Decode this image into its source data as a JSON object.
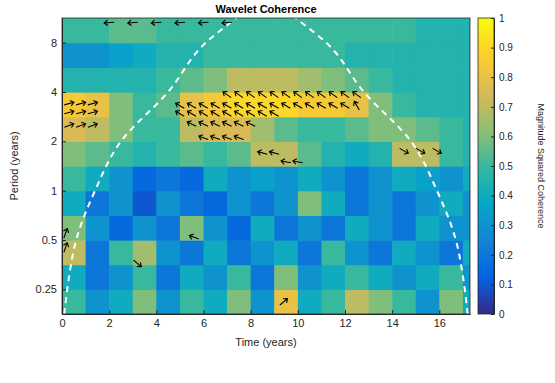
{
  "chart_data": {
    "type": "heatmap",
    "title": "Wavelet Coherence",
    "x_label": "Time (years)",
    "y_label": "Period (years)",
    "log": "y",
    "xlim": [
      0,
      17.3
    ],
    "xticks": [
      0,
      2,
      4,
      6,
      8,
      10,
      12,
      14,
      16
    ],
    "ylim": [
      0.177,
      11.31
    ],
    "yticks": [
      0.25,
      0.5,
      1,
      2,
      4,
      8
    ],
    "x_edges": [
      0,
      1,
      2,
      3,
      4,
      5,
      6,
      7,
      8,
      9,
      10,
      11,
      12,
      13,
      14,
      15,
      16,
      17,
      17.3
    ],
    "y_edges": [
      0.177,
      0.25,
      0.354,
      0.5,
      0.707,
      1,
      1.414,
      2,
      2.828,
      4,
      5.657,
      8,
      11.31
    ],
    "values": [
      [
        0.5,
        0.3,
        0.4,
        0.6,
        0.3,
        0.5,
        0.4,
        0.6,
        0.3,
        0.8,
        0.4,
        0.5,
        0.7,
        0.6,
        0.5,
        0.3,
        0.6,
        0.4
      ],
      [
        0.4,
        0.2,
        0.3,
        0.5,
        0.2,
        0.4,
        0.3,
        0.5,
        0.2,
        0.6,
        0.3,
        0.4,
        0.5,
        0.4,
        0.3,
        0.4,
        0.5,
        0.3
      ],
      [
        0.7,
        0.2,
        0.5,
        0.65,
        0.3,
        0.2,
        0.4,
        0.2,
        0.3,
        0.4,
        0.2,
        0.5,
        0.3,
        0.2,
        0.4,
        0.3,
        0.2,
        0.4
      ],
      [
        0.6,
        0.3,
        0.15,
        0.3,
        0.2,
        0.6,
        0.3,
        0.15,
        0.4,
        0.2,
        0.3,
        0.2,
        0.4,
        0.3,
        0.2,
        0.4,
        0.3,
        0.3
      ],
      [
        0.4,
        0.2,
        0.3,
        0.1,
        0.3,
        0.2,
        0.15,
        0.3,
        0.2,
        0.3,
        0.6,
        0.4,
        0.2,
        0.3,
        0.2,
        0.3,
        0.4,
        0.3
      ],
      [
        0.5,
        0.4,
        0.3,
        0.15,
        0.2,
        0.15,
        0.4,
        0.3,
        0.35,
        0.3,
        0.4,
        0.3,
        0.2,
        0.3,
        0.4,
        0.35,
        0.3,
        0.4
      ],
      [
        0.6,
        0.55,
        0.5,
        0.45,
        0.5,
        0.55,
        0.5,
        0.55,
        0.7,
        0.7,
        0.55,
        0.45,
        0.4,
        0.45,
        0.7,
        0.7,
        0.5,
        0.45
      ],
      [
        0.75,
        0.7,
        0.6,
        0.5,
        0.5,
        0.7,
        0.75,
        0.75,
        0.65,
        0.55,
        0.5,
        0.5,
        0.55,
        0.6,
        0.6,
        0.55,
        0.5,
        0.45
      ],
      [
        0.85,
        0.8,
        0.6,
        0.5,
        0.55,
        0.8,
        0.85,
        0.9,
        0.9,
        0.9,
        0.85,
        0.85,
        0.8,
        0.6,
        0.5,
        0.45,
        0.45,
        0.45
      ],
      [
        0.45,
        0.45,
        0.45,
        0.45,
        0.5,
        0.55,
        0.6,
        0.7,
        0.7,
        0.7,
        0.65,
        0.6,
        0.55,
        0.5,
        0.45,
        0.45,
        0.45,
        0.45
      ],
      [
        0.3,
        0.3,
        0.35,
        0.4,
        0.45,
        0.45,
        0.5,
        0.5,
        0.5,
        0.5,
        0.5,
        0.5,
        0.45,
        0.45,
        0.45,
        0.45,
        0.45,
        0.45
      ],
      [
        0.5,
        0.5,
        0.55,
        0.55,
        0.5,
        0.5,
        0.5,
        0.5,
        0.5,
        0.5,
        0.5,
        0.5,
        0.5,
        0.5,
        0.5,
        0.45,
        0.45,
        0.45
      ]
    ],
    "colorbar": {
      "label": "Magnitude Squared Coherence",
      "range": [
        0,
        1
      ],
      "ticks": [
        0,
        0.1,
        0.2,
        0.3,
        0.4,
        0.5,
        0.6,
        0.7,
        0.8,
        0.9,
        1
      ]
    },
    "arrows": [
      {
        "x": 2,
        "y": 10.6,
        "phase": 185
      },
      {
        "x": 3,
        "y": 10.6,
        "phase": 185
      },
      {
        "x": 4,
        "y": 10.6,
        "phase": 185
      },
      {
        "x": 5,
        "y": 10.6,
        "phase": 185
      },
      {
        "x": 6,
        "y": 10.6,
        "phase": 185
      },
      {
        "x": 7,
        "y": 10.6,
        "phase": 185
      },
      {
        "x": 0.3,
        "y": 3.4,
        "phase": 15
      },
      {
        "x": 0.8,
        "y": 3.4,
        "phase": 15
      },
      {
        "x": 1.3,
        "y": 3.4,
        "phase": 15
      },
      {
        "x": 0.3,
        "y": 3.0,
        "phase": 15
      },
      {
        "x": 0.8,
        "y": 3.0,
        "phase": 15
      },
      {
        "x": 1.3,
        "y": 3.0,
        "phase": 15
      },
      {
        "x": 0.3,
        "y": 2.5,
        "phase": 20
      },
      {
        "x": 0.8,
        "y": 2.5,
        "phase": 20
      },
      {
        "x": 1.3,
        "y": 2.5,
        "phase": 20
      },
      {
        "x": 7.0,
        "y": 3.85,
        "phase": 145
      },
      {
        "x": 7.5,
        "y": 3.85,
        "phase": 145
      },
      {
        "x": 8.0,
        "y": 3.85,
        "phase": 145
      },
      {
        "x": 8.5,
        "y": 3.85,
        "phase": 145
      },
      {
        "x": 9.0,
        "y": 3.85,
        "phase": 145
      },
      {
        "x": 9.5,
        "y": 3.85,
        "phase": 145
      },
      {
        "x": 10.0,
        "y": 3.85,
        "phase": 145
      },
      {
        "x": 10.5,
        "y": 3.85,
        "phase": 145
      },
      {
        "x": 11.0,
        "y": 3.85,
        "phase": 145
      },
      {
        "x": 11.5,
        "y": 3.85,
        "phase": 145
      },
      {
        "x": 12.0,
        "y": 3.85,
        "phase": 145
      },
      {
        "x": 12.5,
        "y": 3.85,
        "phase": 145
      },
      {
        "x": 5.0,
        "y": 3.3,
        "phase": 150
      },
      {
        "x": 5.5,
        "y": 3.3,
        "phase": 150
      },
      {
        "x": 6.0,
        "y": 3.3,
        "phase": 150
      },
      {
        "x": 6.5,
        "y": 3.3,
        "phase": 150
      },
      {
        "x": 7.0,
        "y": 3.3,
        "phase": 150
      },
      {
        "x": 7.5,
        "y": 3.3,
        "phase": 150
      },
      {
        "x": 8.0,
        "y": 3.3,
        "phase": 150
      },
      {
        "x": 8.5,
        "y": 3.3,
        "phase": 150
      },
      {
        "x": 9.0,
        "y": 3.3,
        "phase": 150
      },
      {
        "x": 9.5,
        "y": 3.3,
        "phase": 150
      },
      {
        "x": 10.0,
        "y": 3.3,
        "phase": 150
      },
      {
        "x": 10.5,
        "y": 3.3,
        "phase": 150
      },
      {
        "x": 11.0,
        "y": 3.3,
        "phase": 150
      },
      {
        "x": 11.5,
        "y": 3.3,
        "phase": 150
      },
      {
        "x": 12.0,
        "y": 3.3,
        "phase": 150
      },
      {
        "x": 12.5,
        "y": 3.3,
        "phase": 120
      },
      {
        "x": 5.0,
        "y": 2.95,
        "phase": 150
      },
      {
        "x": 5.5,
        "y": 2.95,
        "phase": 150
      },
      {
        "x": 6.0,
        "y": 2.95,
        "phase": 150
      },
      {
        "x": 6.5,
        "y": 2.95,
        "phase": 150
      },
      {
        "x": 7.0,
        "y": 2.95,
        "phase": 150
      },
      {
        "x": 7.5,
        "y": 2.95,
        "phase": 150
      },
      {
        "x": 8.0,
        "y": 2.95,
        "phase": 150
      },
      {
        "x": 8.5,
        "y": 2.95,
        "phase": 150
      },
      {
        "x": 9.0,
        "y": 2.95,
        "phase": 150
      },
      {
        "x": 5.5,
        "y": 2.55,
        "phase": 155
      },
      {
        "x": 6.0,
        "y": 2.55,
        "phase": 155
      },
      {
        "x": 6.5,
        "y": 2.55,
        "phase": 155
      },
      {
        "x": 7.0,
        "y": 2.55,
        "phase": 155
      },
      {
        "x": 7.5,
        "y": 2.55,
        "phase": 155
      },
      {
        "x": 8.0,
        "y": 2.55,
        "phase": 155
      },
      {
        "x": 6.0,
        "y": 2.1,
        "phase": 160
      },
      {
        "x": 6.5,
        "y": 2.1,
        "phase": 160
      },
      {
        "x": 7.0,
        "y": 2.1,
        "phase": 160
      },
      {
        "x": 7.5,
        "y": 2.1,
        "phase": 160
      },
      {
        "x": 8.5,
        "y": 1.7,
        "phase": 165
      },
      {
        "x": 9.0,
        "y": 1.7,
        "phase": 165
      },
      {
        "x": 9.5,
        "y": 1.5,
        "phase": 170
      },
      {
        "x": 10.0,
        "y": 1.5,
        "phase": 170
      },
      {
        "x": 14.5,
        "y": 1.75,
        "phase": -30
      },
      {
        "x": 15.2,
        "y": 1.75,
        "phase": -30
      },
      {
        "x": 15.9,
        "y": 1.75,
        "phase": -30
      },
      {
        "x": 3.2,
        "y": 0.36,
        "phase": -40
      },
      {
        "x": 5.6,
        "y": 0.52,
        "phase": 160
      },
      {
        "x": 9.4,
        "y": 0.21,
        "phase": 40
      },
      {
        "x": 0.15,
        "y": 0.55,
        "phase": 70
      },
      {
        "x": 0.15,
        "y": 0.45,
        "phase": 70
      }
    ],
    "coi": [
      {
        "x": [
          0.1,
          0.3,
          0.6,
          1.4,
          2.5,
          4.5,
          6.1,
          7.4
        ],
        "y": [
          0.177,
          0.3,
          0.5,
          1,
          2,
          4,
          8,
          11.31
        ]
      },
      {
        "x": [
          17.2,
          17.0,
          16.7,
          15.9,
          14.8,
          12.8,
          11.2,
          9.9
        ],
        "y": [
          0.177,
          0.3,
          0.5,
          1,
          2,
          4,
          8,
          11.31
        ]
      }
    ]
  }
}
